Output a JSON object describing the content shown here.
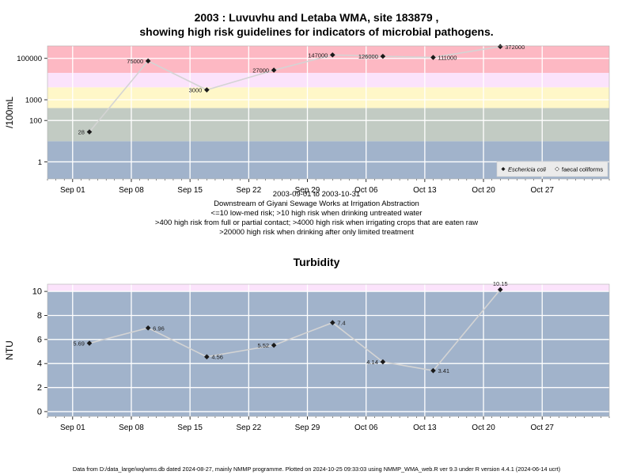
{
  "title_line1": "2003 : Luvuvhu and Letaba WMA, site 183879 ,",
  "title_line2": "showing high risk guidelines for indicators of microbial pathogens.",
  "captions": [
    "2003-09-01 to 2003-10-31",
    "Downstream of Giyani Sewage Works at Irrigation Abstraction",
    "<=10 low-med risk; >10 high risk when drinking untreated water",
    ">400 high risk from full or partial contact; >4000 high risk when irrigating crops that are eaten raw",
    ">20000 high risk when drinking after only limited treatment"
  ],
  "footer": "Data from D:/data_large/wq/wms.db dated 2024-08-27, mainly NMMP programme. Plotted on 2024-10-25 09:33:03 using NMMP_WMA_web.R ver 9.3 under R version 4.4.1 (2024-06-14 ucrt)",
  "colors": {
    "band_blue": "#a1b3cb",
    "band_grey": "#c2cbc3",
    "band_yellow": "#fff7c8",
    "band_lavender": "#fbe3fb",
    "band_pink": "#fdb8c3",
    "grid": "#ffffff",
    "line": "#d4d4d4",
    "point": "#1a1a1a"
  },
  "chart_data": [
    {
      "type": "line",
      "title": "",
      "xlabel": "",
      "ylabel": "/100mL",
      "yscale": "log",
      "x_tick_labels": [
        "Sep 01",
        "Sep 08",
        "Sep 15",
        "Sep 22",
        "Sep 29",
        "Oct 06",
        "Oct 13",
        "Oct 20",
        "Oct 27"
      ],
      "x_tick_dates": [
        "2003-09-01",
        "2003-09-08",
        "2003-09-15",
        "2003-09-22",
        "2003-09-29",
        "2003-10-06",
        "2003-10-13",
        "2003-10-20",
        "2003-10-27"
      ],
      "xlim": [
        "2003-08-29",
        "2003-11-04"
      ],
      "y_tick_labels": [
        "1",
        "100",
        "1000",
        "100000"
      ],
      "y_tick_values": [
        1,
        100,
        1000,
        100000
      ],
      "ylim": [
        0.15,
        400000
      ],
      "risk_bands": [
        {
          "from": 0.15,
          "to": 10,
          "color": "band_blue"
        },
        {
          "from": 10,
          "to": 400,
          "color": "band_grey"
        },
        {
          "from": 400,
          "to": 4000,
          "color": "band_yellow"
        },
        {
          "from": 4000,
          "to": 20000,
          "color": "band_lavender"
        },
        {
          "from": 20000,
          "to": 400000,
          "color": "band_pink"
        }
      ],
      "legend": {
        "position": "bottom-right",
        "entries": [
          "Eschericia coli",
          "faecal coliforms"
        ]
      },
      "series": [
        {
          "name": "Eschericia coli",
          "x": [
            "2003-09-03",
            "2003-09-10",
            "2003-09-17",
            "2003-09-25",
            "2003-10-02",
            "2003-10-08",
            "2003-10-14",
            "2003-10-22"
          ],
          "values": [
            28,
            75000,
            3000,
            27000,
            147000,
            126000,
            111000,
            372000
          ],
          "labels": [
            "28",
            "75000",
            "3000",
            "27000",
            "147000",
            "126000",
            "111000",
            "372000"
          ]
        }
      ]
    },
    {
      "type": "line",
      "title": "Turbidity",
      "xlabel": "",
      "ylabel": "NTU",
      "x_tick_labels": [
        "Sep 01",
        "Sep 08",
        "Sep 15",
        "Sep 22",
        "Sep 29",
        "Oct 06",
        "Oct 13",
        "Oct 20",
        "Oct 27"
      ],
      "x_tick_dates": [
        "2003-09-01",
        "2003-09-08",
        "2003-09-15",
        "2003-09-22",
        "2003-09-29",
        "2003-10-06",
        "2003-10-13",
        "2003-10-20",
        "2003-10-27"
      ],
      "xlim": [
        "2003-08-29",
        "2003-11-04"
      ],
      "y_tick_labels": [
        "0",
        "2",
        "4",
        "6",
        "8",
        "10"
      ],
      "y_tick_values": [
        0,
        2,
        4,
        6,
        8,
        10
      ],
      "ylim": [
        -0.4,
        10.6
      ],
      "risk_bands": [
        {
          "from": -0.4,
          "to": 10,
          "color": "band_blue"
        },
        {
          "from": 10,
          "to": 10.6,
          "color": "band_lavender"
        }
      ],
      "series": [
        {
          "x": [
            "2003-09-03",
            "2003-09-10",
            "2003-09-17",
            "2003-09-25",
            "2003-10-02",
            "2003-10-08",
            "2003-10-14",
            "2003-10-22"
          ],
          "values": [
            5.69,
            6.96,
            4.56,
            5.52,
            7.4,
            4.14,
            3.41,
            10.15
          ],
          "labels": [
            "5.69",
            "6.96",
            "4.56",
            "5.52",
            "7.4",
            "4.14",
            "3.41",
            "10.15"
          ]
        }
      ]
    }
  ]
}
